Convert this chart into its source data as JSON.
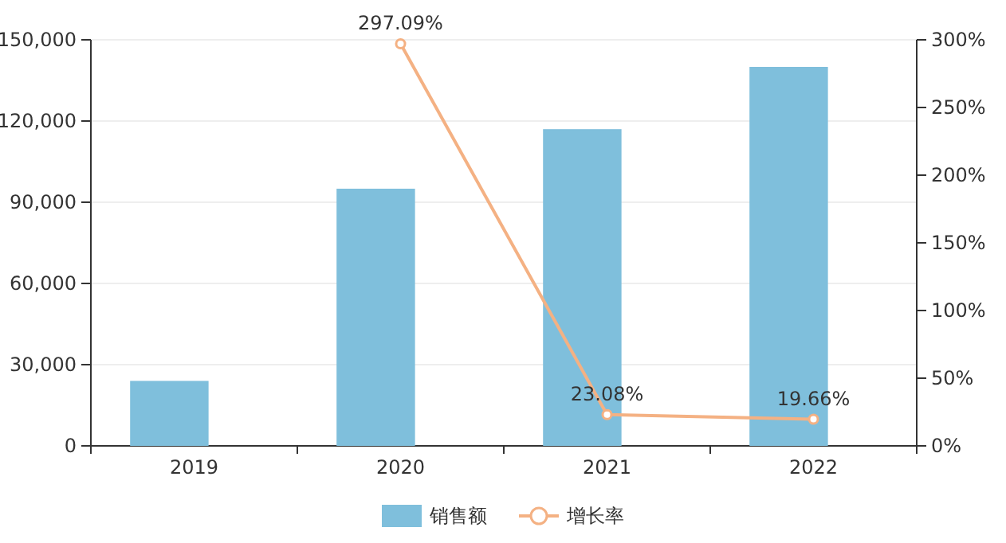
{
  "chart_data": {
    "type": "bar",
    "categories": [
      "2019",
      "2020",
      "2021",
      "2022"
    ],
    "series": [
      {
        "name": "销售额",
        "color": "#7fbfdc",
        "values": [
          24000,
          95000,
          117000,
          140000
        ]
      },
      {
        "name": "增长率",
        "type": "line",
        "axis": "y2",
        "color": "#f4b183",
        "marker": "circle",
        "values": [
          null,
          297.09,
          23.08,
          19.66
        ],
        "value_labels": [
          null,
          "297.09%",
          "23.08%",
          "19.66%"
        ]
      }
    ],
    "ylim": [
      0,
      150000
    ],
    "yticks": [
      {
        "value": 0,
        "label": "0"
      },
      {
        "value": 30000,
        "label": "30,000"
      },
      {
        "value": 60000,
        "label": "60,000"
      },
      {
        "value": 90000,
        "label": "90,000"
      },
      {
        "value": 120000,
        "label": "120,000"
      },
      {
        "value": 150000,
        "label": "150,000"
      }
    ],
    "y2lim": [
      0,
      300
    ],
    "y2ticks": [
      {
        "value": 0,
        "label": "0%"
      },
      {
        "value": 50,
        "label": "50%"
      },
      {
        "value": 100,
        "label": "100%"
      },
      {
        "value": 150,
        "label": "150%"
      },
      {
        "value": 200,
        "label": "200%"
      },
      {
        "value": 250,
        "label": "250%"
      },
      {
        "value": 300,
        "label": "300%"
      }
    ],
    "grid": "y",
    "legend": "bottom"
  }
}
